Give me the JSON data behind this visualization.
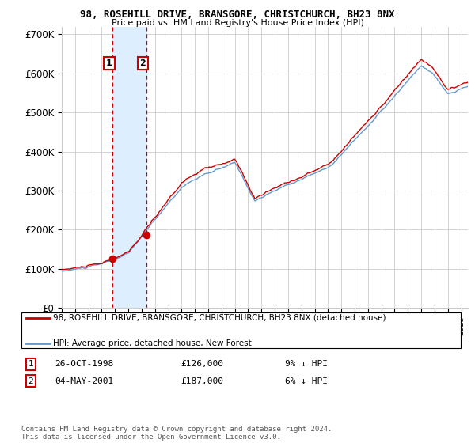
{
  "title": "98, ROSEHILL DRIVE, BRANSGORE, CHRISTCHURCH, BH23 8NX",
  "subtitle": "Price paid vs. HM Land Registry's House Price Index (HPI)",
  "legend_line1": "98, ROSEHILL DRIVE, BRANSGORE, CHRISTCHURCH, BH23 8NX (detached house)",
  "legend_line2": "HPI: Average price, detached house, New Forest",
  "footnote": "Contains HM Land Registry data © Crown copyright and database right 2024.\nThis data is licensed under the Open Government Licence v3.0.",
  "sale1_date": "26-OCT-1998",
  "sale1_price": "£126,000",
  "sale1_hpi": "9% ↓ HPI",
  "sale2_date": "04-MAY-2001",
  "sale2_price": "£187,000",
  "sale2_hpi": "6% ↓ HPI",
  "red_color": "#cc0000",
  "blue_color": "#6699cc",
  "shade_color": "#ddeeff",
  "grid_color": "#cccccc",
  "bg_color": "#ffffff",
  "ylim": [
    0,
    720000
  ],
  "yticks": [
    0,
    100000,
    200000,
    300000,
    400000,
    500000,
    600000,
    700000
  ],
  "ytick_labels": [
    "£0",
    "£100K",
    "£200K",
    "£300K",
    "£400K",
    "£500K",
    "£600K",
    "£700K"
  ],
  "sale1_x": 1998.82,
  "sale1_y": 126000,
  "sale2_x": 2001.34,
  "sale2_y": 187000,
  "vline1_x": 1998.82,
  "vline2_x": 2001.34,
  "xlim_start": 1995.0,
  "xlim_end": 2025.5
}
